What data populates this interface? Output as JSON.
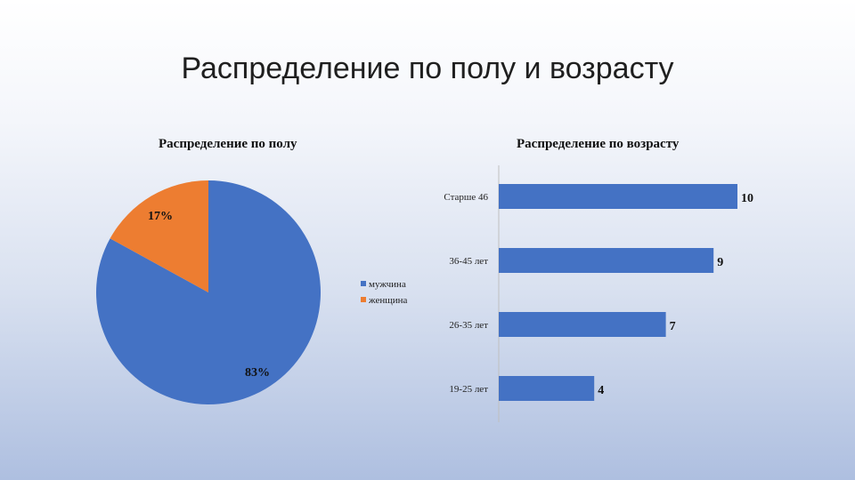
{
  "slide": {
    "title": "Распределение по полу и возрасту"
  },
  "chart_data": [
    {
      "type": "pie",
      "title": "Распределение по полу",
      "slices": [
        {
          "name": "мужчина",
          "value": 83,
          "label": "83%",
          "color": "#4472C4"
        },
        {
          "name": "женщина",
          "value": 17,
          "label": "17%",
          "color": "#ED7D31"
        }
      ],
      "legend": {
        "position": "right",
        "items": [
          "мужчина",
          "женщина"
        ]
      }
    },
    {
      "type": "bar",
      "orientation": "horizontal",
      "title": "Распределение по возрасту",
      "categories": [
        "Старше 46",
        "36-45 лет",
        "26-35 лет",
        "19-25 лет"
      ],
      "values": [
        10,
        9,
        7,
        4
      ],
      "color": "#4472C4",
      "xlim": [
        0,
        10
      ]
    }
  ]
}
